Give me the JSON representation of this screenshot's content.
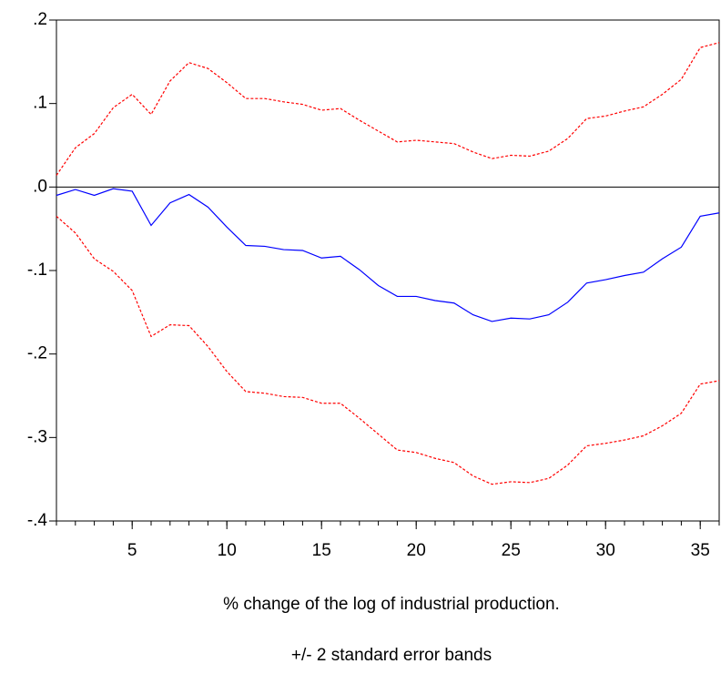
{
  "chart_data": {
    "type": "line",
    "title": "% change of the log of industrial production.",
    "subtitle": "+/- 2 standard error bands",
    "x": [
      1,
      2,
      3,
      4,
      5,
      6,
      7,
      8,
      9,
      10,
      11,
      12,
      13,
      14,
      15,
      16,
      17,
      18,
      19,
      20,
      21,
      22,
      23,
      24,
      25,
      26,
      27,
      28,
      29,
      30,
      31,
      32,
      33,
      34,
      35,
      36
    ],
    "series": [
      {
        "color": "#0000ff",
        "dashed": false,
        "values": [
          -0.01,
          -0.003,
          -0.01,
          -0.002,
          -0.005,
          -0.046,
          -0.019,
          -0.009,
          -0.024,
          -0.048,
          -0.07,
          -0.071,
          -0.075,
          -0.076,
          -0.085,
          -0.083,
          -0.099,
          -0.118,
          -0.131,
          -0.131,
          -0.136,
          -0.139,
          -0.153,
          -0.161,
          -0.157,
          -0.158,
          -0.153,
          -0.138,
          -0.115,
          -0.111,
          -0.106,
          -0.102,
          -0.086,
          -0.072,
          -0.035,
          -0.031
        ]
      },
      {
        "color": "#ff0000",
        "dashed": true,
        "values": [
          0.014,
          0.047,
          0.064,
          0.095,
          0.111,
          0.087,
          0.127,
          0.149,
          0.142,
          0.125,
          0.106,
          0.106,
          0.102,
          0.099,
          0.092,
          0.094,
          0.08,
          0.067,
          0.054,
          0.056,
          0.054,
          0.052,
          0.042,
          0.034,
          0.038,
          0.037,
          0.043,
          0.058,
          0.082,
          0.085,
          0.091,
          0.096,
          0.111,
          0.129,
          0.167,
          0.173
        ]
      },
      {
        "color": "#ff0000",
        "dashed": true,
        "values": [
          -0.035,
          -0.055,
          -0.086,
          -0.101,
          -0.124,
          -0.179,
          -0.165,
          -0.166,
          -0.191,
          -0.221,
          -0.245,
          -0.247,
          -0.251,
          -0.252,
          -0.259,
          -0.259,
          -0.277,
          -0.296,
          -0.315,
          -0.318,
          -0.325,
          -0.33,
          -0.346,
          -0.356,
          -0.353,
          -0.354,
          -0.349,
          -0.333,
          -0.31,
          -0.307,
          -0.303,
          -0.298,
          -0.286,
          -0.271,
          -0.236,
          -0.232
        ]
      }
    ],
    "xlim": [
      1,
      36
    ],
    "xticks": [
      5,
      10,
      15,
      20,
      25,
      30,
      35
    ],
    "ylim": [
      -0.4,
      0.2
    ],
    "yticks": [
      {
        "value": -0.4,
        "label": "-.4"
      },
      {
        "value": -0.3,
        "label": "-.3"
      },
      {
        "value": -0.2,
        "label": "-.2"
      },
      {
        "value": -0.1,
        "label": "-.1"
      },
      {
        "value": 0,
        "label": ".0"
      },
      {
        "value": 0.1,
        "label": ".1"
      },
      {
        "value": 0.2,
        "label": ".2"
      }
    ],
    "zero_line": true
  }
}
